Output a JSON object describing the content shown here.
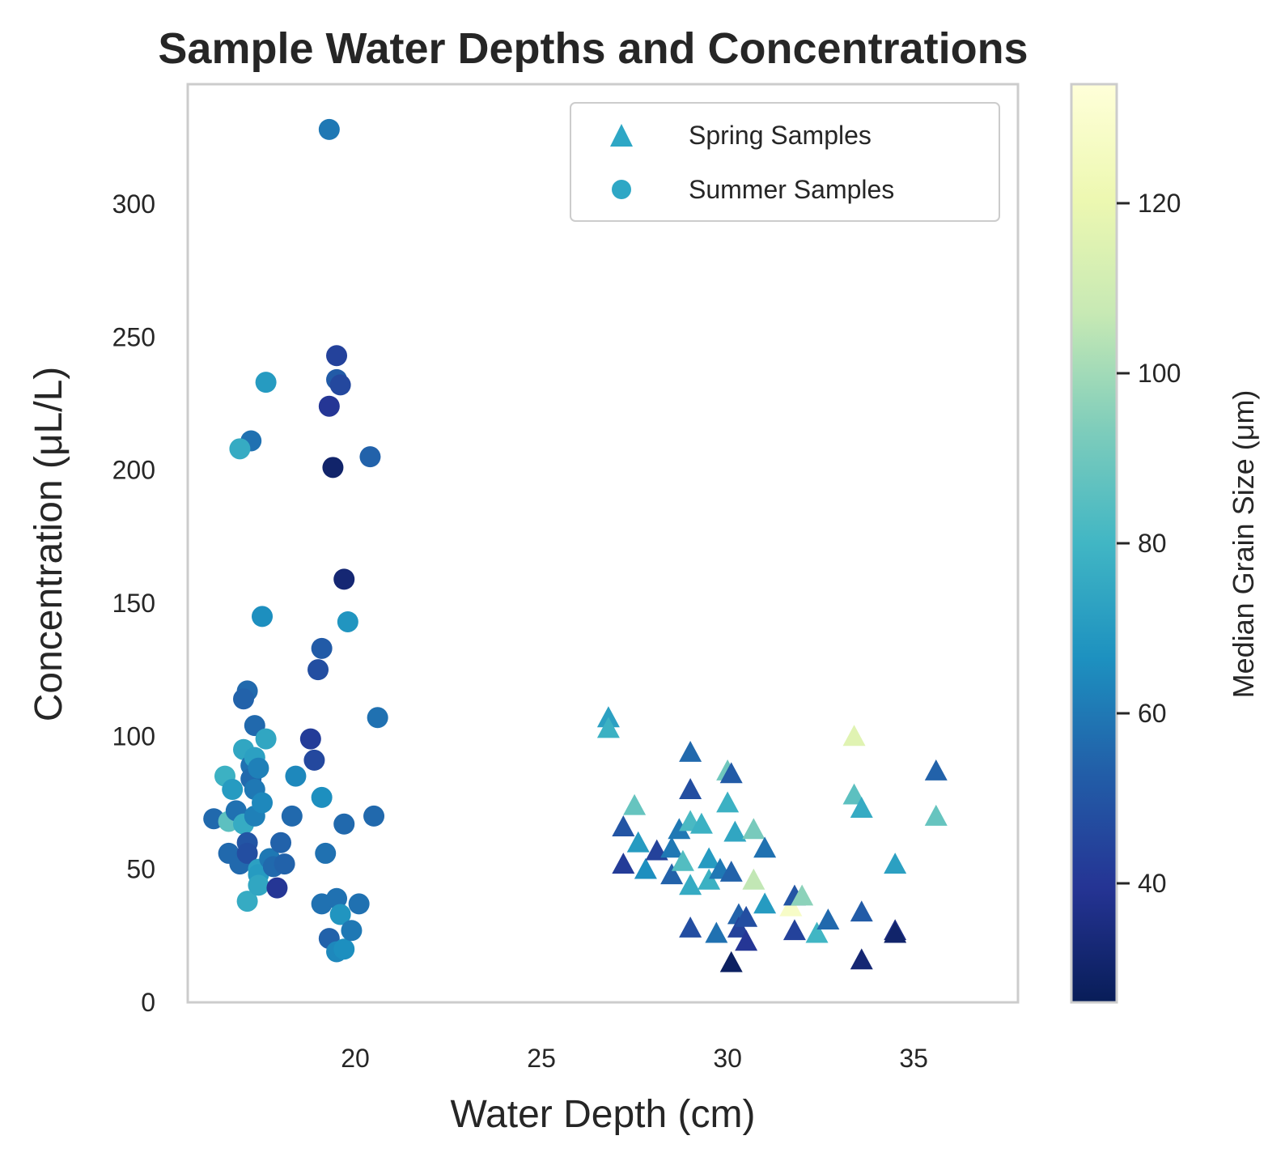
{
  "chart_data": {
    "type": "scatter",
    "title": "Sample Water Depths and Concentrations",
    "xlabel": "Water Depth (cm)",
    "ylabel": "Concentration (μL/L)",
    "xlim": [
      15.5,
      37.8
    ],
    "ylim": [
      0,
      345
    ],
    "xticks": [
      20,
      25,
      30,
      35
    ],
    "yticks": [
      0,
      50,
      100,
      150,
      200,
      250,
      300
    ],
    "grid": false,
    "legend": {
      "placement": "top-right",
      "entries": [
        "Spring Samples",
        "Summer Samples"
      ]
    },
    "colorbar": {
      "label": "Median Grain Size (μm)",
      "range": [
        26,
        134
      ],
      "ticks": [
        40,
        60,
        80,
        100,
        120
      ],
      "colormap": "YlGnBu",
      "stops": [
        "#081d58",
        "#253494",
        "#225ea8",
        "#1d91c0",
        "#41b6c4",
        "#7fcdbb",
        "#c7e9b4",
        "#edf8b1",
        "#ffffd9"
      ]
    },
    "legend_color": "#2ea7c5",
    "series": [
      {
        "name": "Spring Samples",
        "marker": "triangle",
        "points": [
          [
            26.8,
            107,
            72
          ],
          [
            26.8,
            103,
            78
          ],
          [
            27.2,
            66,
            50
          ],
          [
            27.2,
            52,
            42
          ],
          [
            27.5,
            74,
            88
          ],
          [
            27.6,
            60,
            70
          ],
          [
            27.8,
            50,
            66
          ],
          [
            28.1,
            57,
            44
          ],
          [
            28.5,
            48,
            54
          ],
          [
            28.5,
            58,
            60
          ],
          [
            28.7,
            65,
            60
          ],
          [
            28.8,
            53,
            84
          ],
          [
            29.0,
            94,
            56
          ],
          [
            29.0,
            80,
            48
          ],
          [
            29.0,
            68,
            82
          ],
          [
            29.0,
            28,
            48
          ],
          [
            29.0,
            44,
            76
          ],
          [
            29.3,
            67,
            78
          ],
          [
            29.5,
            54,
            70
          ],
          [
            29.5,
            46,
            78
          ],
          [
            29.7,
            26,
            58
          ],
          [
            29.8,
            50,
            60
          ],
          [
            30.0,
            87,
            90
          ],
          [
            30.0,
            75,
            78
          ],
          [
            30.1,
            86,
            52
          ],
          [
            30.1,
            49,
            54
          ],
          [
            30.1,
            15,
            28
          ],
          [
            30.2,
            64,
            74
          ],
          [
            30.3,
            33,
            54
          ],
          [
            30.3,
            28,
            44
          ],
          [
            30.5,
            23,
            40
          ],
          [
            30.5,
            32,
            48
          ],
          [
            30.7,
            46,
            106
          ],
          [
            30.7,
            65,
            92
          ],
          [
            31.0,
            37,
            70
          ],
          [
            31.0,
            58,
            58
          ],
          [
            31.7,
            36,
            128
          ],
          [
            31.8,
            40,
            50
          ],
          [
            31.8,
            27,
            44
          ],
          [
            32.0,
            40,
            96
          ],
          [
            32.4,
            26,
            80
          ],
          [
            32.7,
            31,
            56
          ],
          [
            33.4,
            100,
            116
          ],
          [
            33.4,
            78,
            86
          ],
          [
            33.6,
            73,
            76
          ],
          [
            33.6,
            34,
            52
          ],
          [
            33.6,
            16,
            32
          ],
          [
            34.5,
            52,
            72
          ],
          [
            34.5,
            27,
            36
          ],
          [
            34.5,
            26,
            30
          ],
          [
            35.6,
            87,
            54
          ],
          [
            35.6,
            70,
            88
          ]
        ]
      },
      {
        "name": "Summer Samples",
        "marker": "circle",
        "points": [
          [
            16.2,
            69,
            56
          ],
          [
            16.5,
            85,
            78
          ],
          [
            16.6,
            68,
            86
          ],
          [
            16.6,
            56,
            56
          ],
          [
            16.7,
            80,
            70
          ],
          [
            16.8,
            72,
            58
          ],
          [
            16.9,
            52,
            56
          ],
          [
            17.0,
            95,
            74
          ],
          [
            17.1,
            117,
            56
          ],
          [
            17.0,
            114,
            54
          ],
          [
            17.0,
            67,
            76
          ],
          [
            17.1,
            38,
            76
          ],
          [
            17.1,
            60,
            50
          ],
          [
            17.1,
            56,
            48
          ],
          [
            17.2,
            89,
            58
          ],
          [
            17.2,
            84,
            56
          ],
          [
            17.2,
            211,
            58
          ],
          [
            17.3,
            92,
            72
          ],
          [
            17.3,
            104,
            56
          ],
          [
            17.3,
            80,
            60
          ],
          [
            17.3,
            70,
            62
          ],
          [
            17.4,
            50,
            72
          ],
          [
            17.4,
            48,
            70
          ],
          [
            17.4,
            44,
            74
          ],
          [
            17.4,
            88,
            62
          ],
          [
            17.5,
            145,
            66
          ],
          [
            17.5,
            75,
            64
          ],
          [
            17.6,
            99,
            74
          ],
          [
            17.6,
            233,
            70
          ],
          [
            16.9,
            208,
            76
          ],
          [
            17.7,
            54,
            60
          ],
          [
            17.8,
            51,
            56
          ],
          [
            17.9,
            43,
            40
          ],
          [
            18.0,
            60,
            54
          ],
          [
            18.1,
            52,
            54
          ],
          [
            18.3,
            70,
            56
          ],
          [
            18.4,
            85,
            64
          ],
          [
            18.8,
            99,
            42
          ],
          [
            18.9,
            91,
            46
          ],
          [
            19.0,
            125,
            48
          ],
          [
            19.1,
            133,
            52
          ],
          [
            19.1,
            77,
            66
          ],
          [
            19.1,
            37,
            58
          ],
          [
            19.2,
            56,
            58
          ],
          [
            19.3,
            328,
            60
          ],
          [
            19.3,
            224,
            40
          ],
          [
            19.3,
            24,
            54
          ],
          [
            19.4,
            201,
            30
          ],
          [
            19.5,
            243,
            44
          ],
          [
            19.5,
            234,
            52
          ],
          [
            19.6,
            232,
            46
          ],
          [
            19.5,
            39,
            58
          ],
          [
            19.5,
            19,
            64
          ],
          [
            19.6,
            33,
            68
          ],
          [
            19.7,
            20,
            66
          ],
          [
            19.7,
            159,
            32
          ],
          [
            19.7,
            67,
            56
          ],
          [
            19.8,
            143,
            68
          ],
          [
            19.9,
            27,
            60
          ],
          [
            20.1,
            37,
            58
          ],
          [
            20.4,
            205,
            54
          ],
          [
            20.5,
            70,
            56
          ],
          [
            20.6,
            107,
            58
          ]
        ]
      }
    ]
  }
}
